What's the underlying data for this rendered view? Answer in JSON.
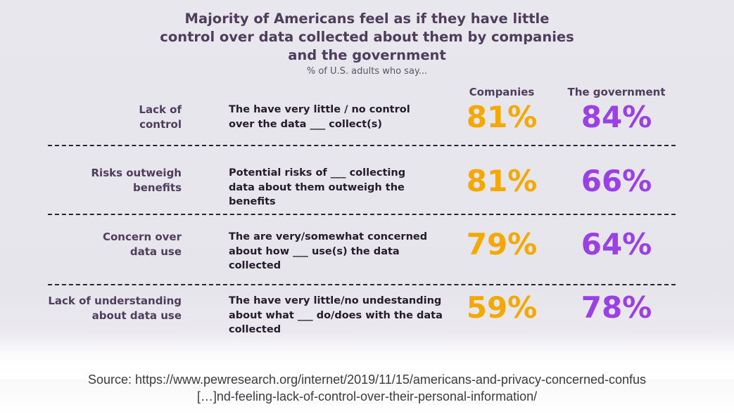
{
  "chart_data": {
    "type": "table",
    "title": "Majority of Americans feel as if they have little control over data collected about them by companies and the government",
    "title_lines": [
      "Majority of Americans feel as if they have little",
      "control over data collected about them by companies",
      "and the government"
    ],
    "subtitle": "% of U.S. adults who say...",
    "columns": [
      "Companies",
      "The government"
    ],
    "rows": [
      {
        "label_lines": [
          "Lack of",
          "control"
        ],
        "description_lines": [
          "The have very little / no control",
          "over the data ___ collect(s)"
        ],
        "values": [
          "81%",
          "84%"
        ]
      },
      {
        "label_lines": [
          "Risks outweigh",
          "benefits"
        ],
        "description_lines": [
          "Potential risks of ___ collecting",
          "data about them outweigh the",
          "benefits"
        ],
        "values": [
          "81%",
          "66%"
        ]
      },
      {
        "label_lines": [
          "Concern over",
          "data use"
        ],
        "description_lines": [
          "The are very/somewhat concerned",
          "about how ___ use(s) the data",
          "collected"
        ],
        "values": [
          "79%",
          "64%"
        ]
      },
      {
        "label_lines": [
          "Lack of understanding",
          "about data use"
        ],
        "description_lines": [
          "The have very little/no undestanding",
          "about what ___ do/does with the data",
          "collected"
        ],
        "values": [
          "59%",
          "78%"
        ]
      }
    ],
    "colors": {
      "companies": "#f5a800",
      "government": "#9b3fe6",
      "title": "#4e3d5b"
    }
  },
  "source_lines": [
    "Source: https://www.pewresearch.org/internet/2019/11/15/americans-and-privacy-concerned-confus",
    "[…]nd-feeling-lack-of-control-over-their-personal-information/"
  ]
}
